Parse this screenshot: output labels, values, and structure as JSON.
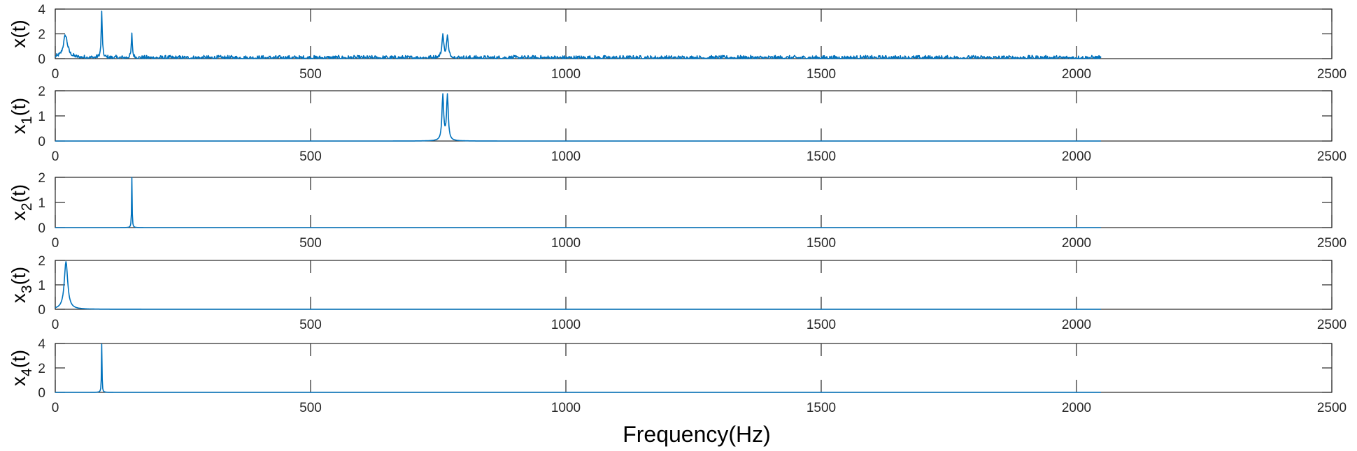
{
  "chart_data": {
    "type": "line",
    "series_color": "#0072BD",
    "axis_color": "#262626",
    "shared_xlabel": "Frequency(Hz)",
    "xlim": [
      0,
      2500
    ],
    "xticks": [
      0,
      500,
      1000,
      1500,
      2000,
      2500
    ],
    "signal_extent_hz": 2048,
    "subplots": [
      {
        "id": "x",
        "ylabel": "x(t)",
        "ylabel_main": "x",
        "ylabel_sub": "",
        "ylabel_tail": "(t)",
        "ylim": [
          0,
          4
        ],
        "yticks": [
          0,
          2,
          4
        ],
        "noise_level": 0.12,
        "peaks": [
          {
            "x": 20,
            "y": 1.8,
            "width": 5
          },
          {
            "x": 91,
            "y": 3.7,
            "width": 1.2
          },
          {
            "x": 150,
            "y": 1.9,
            "width": 1.2
          },
          {
            "x": 759,
            "y": 1.85,
            "width": 2
          },
          {
            "x": 768,
            "y": 1.75,
            "width": 2
          }
        ]
      },
      {
        "id": "x1",
        "ylabel": "x1(t)",
        "ylabel_main": "x",
        "ylabel_sub": "1",
        "ylabel_tail": "(t)",
        "ylim": [
          0,
          2
        ],
        "yticks": [
          0,
          1,
          2
        ],
        "noise_level": 0,
        "peaks": [
          {
            "x": 759,
            "y": 1.8,
            "width": 2
          },
          {
            "x": 768,
            "y": 1.8,
            "width": 2
          }
        ]
      },
      {
        "id": "x2",
        "ylabel": "x2(t)",
        "ylabel_main": "x",
        "ylabel_sub": "2",
        "ylabel_tail": "(t)",
        "ylim": [
          0,
          2
        ],
        "yticks": [
          0,
          1,
          2
        ],
        "noise_level": 0,
        "peaks": [
          {
            "x": 150,
            "y": 2.0,
            "width": 0.6
          }
        ]
      },
      {
        "id": "x3",
        "ylabel": "x3(t)",
        "ylabel_main": "x",
        "ylabel_sub": "3",
        "ylabel_tail": "(t)",
        "ylim": [
          0,
          2
        ],
        "yticks": [
          0,
          1,
          2
        ],
        "noise_level": 0,
        "peaks": [
          {
            "x": 21,
            "y": 1.95,
            "width": 4
          }
        ]
      },
      {
        "id": "x4",
        "ylabel": "x4(t)",
        "ylabel_main": "x",
        "ylabel_sub": "4",
        "ylabel_tail": "(t)",
        "ylim": [
          0,
          4
        ],
        "yticks": [
          0,
          2,
          4
        ],
        "noise_level": 0,
        "peaks": [
          {
            "x": 91,
            "y": 3.95,
            "width": 0.6
          }
        ]
      }
    ]
  }
}
